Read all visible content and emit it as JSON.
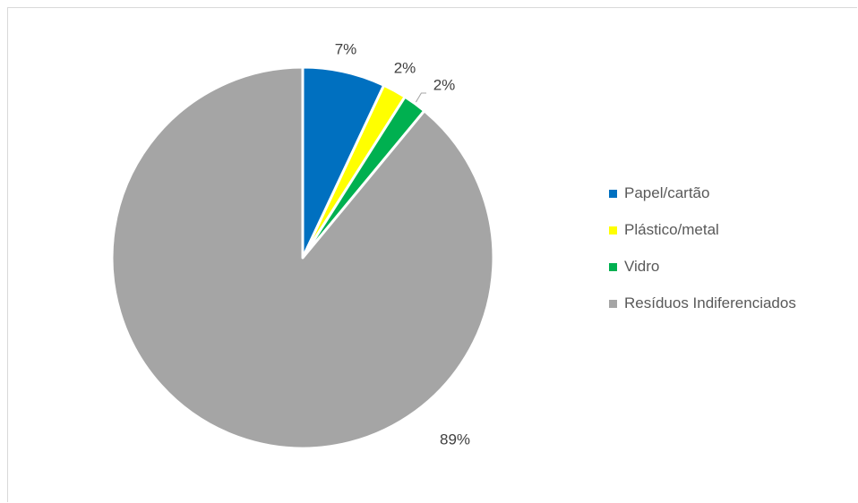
{
  "chart_data": {
    "type": "pie",
    "categories": [
      "Papel/cartão",
      "Plástico/metal",
      "Vidro",
      "Resíduos Indiferenciados"
    ],
    "values": [
      7,
      2,
      2,
      89
    ],
    "data_labels": [
      "7%",
      "2%",
      "2%",
      "89%"
    ],
    "colors": [
      "#0070c0",
      "#ffff00",
      "#00b050",
      "#a5a5a5"
    ],
    "legend_position": "right"
  }
}
